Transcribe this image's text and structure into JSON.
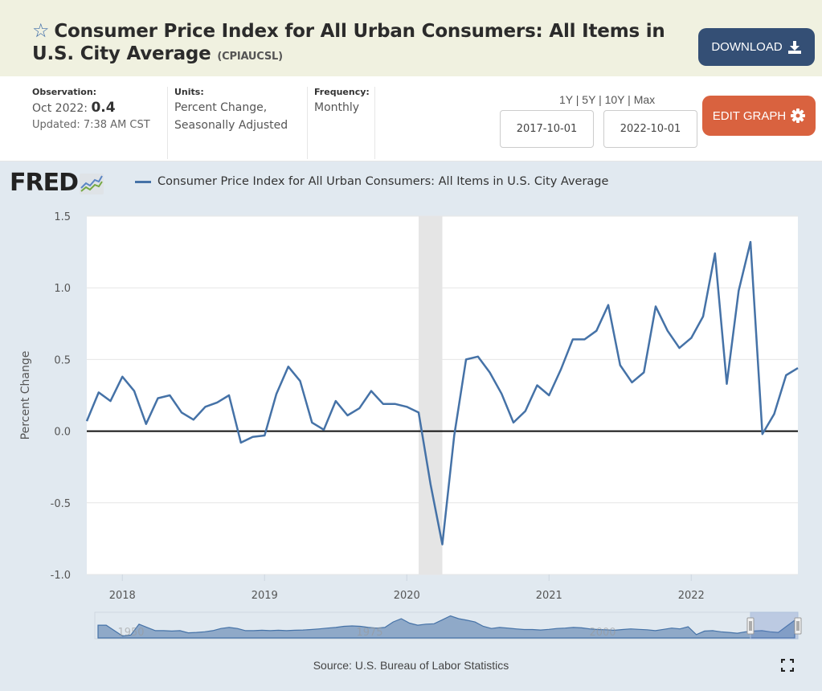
{
  "header": {
    "title": "Consumer Price Index for All Urban Consumers: All Items in U.S. City Average",
    "series_id": "(CPIAUCSL)",
    "download_label": "DOWNLOAD",
    "edit_graph_label": "EDIT GRAPH"
  },
  "meta": {
    "observation_label": "Observation:",
    "observation_date": "Oct 2022:",
    "observation_value": "0.4",
    "updated": "Updated: 7:38 AM CST",
    "units_label": "Units:",
    "units_line1": "Percent Change,",
    "units_line2": "Seasonally Adjusted",
    "frequency_label": "Frequency:",
    "frequency_value": "Monthly"
  },
  "range": {
    "options": [
      "1Y",
      "5Y",
      "10Y",
      "Max"
    ],
    "separator": "|",
    "start_date": "2017-10-01",
    "end_date": "2022-10-01"
  },
  "logo": {
    "text": "FRED"
  },
  "source": "Source: U.S. Bureau of Labor Statistics",
  "colors": {
    "series": "#4572a7",
    "download_button": "#344f75",
    "edit_button": "#d9623f",
    "recession": "#e5e5e5"
  },
  "chart_data": {
    "type": "line",
    "title": "",
    "legend": [
      "Consumer Price Index for All Urban Consumers: All Items in U.S. City Average"
    ],
    "legend_position": "top-left",
    "xlabel": "",
    "ylabel": "Percent Change",
    "ylim": [
      -1.0,
      1.5
    ],
    "yticks": [
      "1.5",
      "1.0",
      "0.5",
      "0.0",
      "-0.5",
      "-1.0"
    ],
    "ytick_values": [
      1.5,
      1.0,
      0.5,
      0.0,
      -0.5,
      -1.0
    ],
    "xticks": [
      "2018",
      "2019",
      "2020",
      "2021",
      "2022"
    ],
    "x_start": "2017-10",
    "x_end": "2022-10",
    "grid": true,
    "recession": {
      "start": "2020-02",
      "end": "2020-04"
    },
    "series": [
      {
        "name": "CPIAUCSL",
        "x": [
          "2017-10",
          "2017-11",
          "2017-12",
          "2018-01",
          "2018-02",
          "2018-03",
          "2018-04",
          "2018-05",
          "2018-06",
          "2018-07",
          "2018-08",
          "2018-09",
          "2018-10",
          "2018-11",
          "2018-12",
          "2019-01",
          "2019-02",
          "2019-03",
          "2019-04",
          "2019-05",
          "2019-06",
          "2019-07",
          "2019-08",
          "2019-09",
          "2019-10",
          "2019-11",
          "2019-12",
          "2020-01",
          "2020-02",
          "2020-03",
          "2020-04",
          "2020-05",
          "2020-06",
          "2020-07",
          "2020-08",
          "2020-09",
          "2020-10",
          "2020-11",
          "2020-12",
          "2021-01",
          "2021-02",
          "2021-03",
          "2021-04",
          "2021-05",
          "2021-06",
          "2021-07",
          "2021-08",
          "2021-09",
          "2021-10",
          "2021-11",
          "2021-12",
          "2022-01",
          "2022-02",
          "2022-03",
          "2022-04",
          "2022-05",
          "2022-06",
          "2022-07",
          "2022-08",
          "2022-09",
          "2022-10"
        ],
        "values": [
          0.07,
          0.27,
          0.21,
          0.38,
          0.28,
          0.05,
          0.23,
          0.25,
          0.13,
          0.08,
          0.17,
          0.2,
          0.25,
          -0.08,
          -0.04,
          -0.03,
          0.26,
          0.45,
          0.35,
          0.06,
          0.01,
          0.21,
          0.11,
          0.16,
          0.28,
          0.19,
          0.19,
          0.17,
          0.13,
          -0.37,
          -0.79,
          -0.03,
          0.5,
          0.52,
          0.41,
          0.26,
          0.06,
          0.14,
          0.32,
          0.25,
          0.43,
          0.64,
          0.64,
          0.7,
          0.88,
          0.46,
          0.34,
          0.41,
          0.87,
          0.7,
          0.58,
          0.65,
          0.8,
          1.24,
          0.33,
          0.98,
          1.32,
          -0.02,
          0.12,
          0.39,
          0.44
        ]
      }
    ],
    "navigator": {
      "ticks": [
        "1950",
        "1975",
        "2000"
      ],
      "selected_range": [
        "2017-10",
        "2022-10"
      ]
    }
  }
}
